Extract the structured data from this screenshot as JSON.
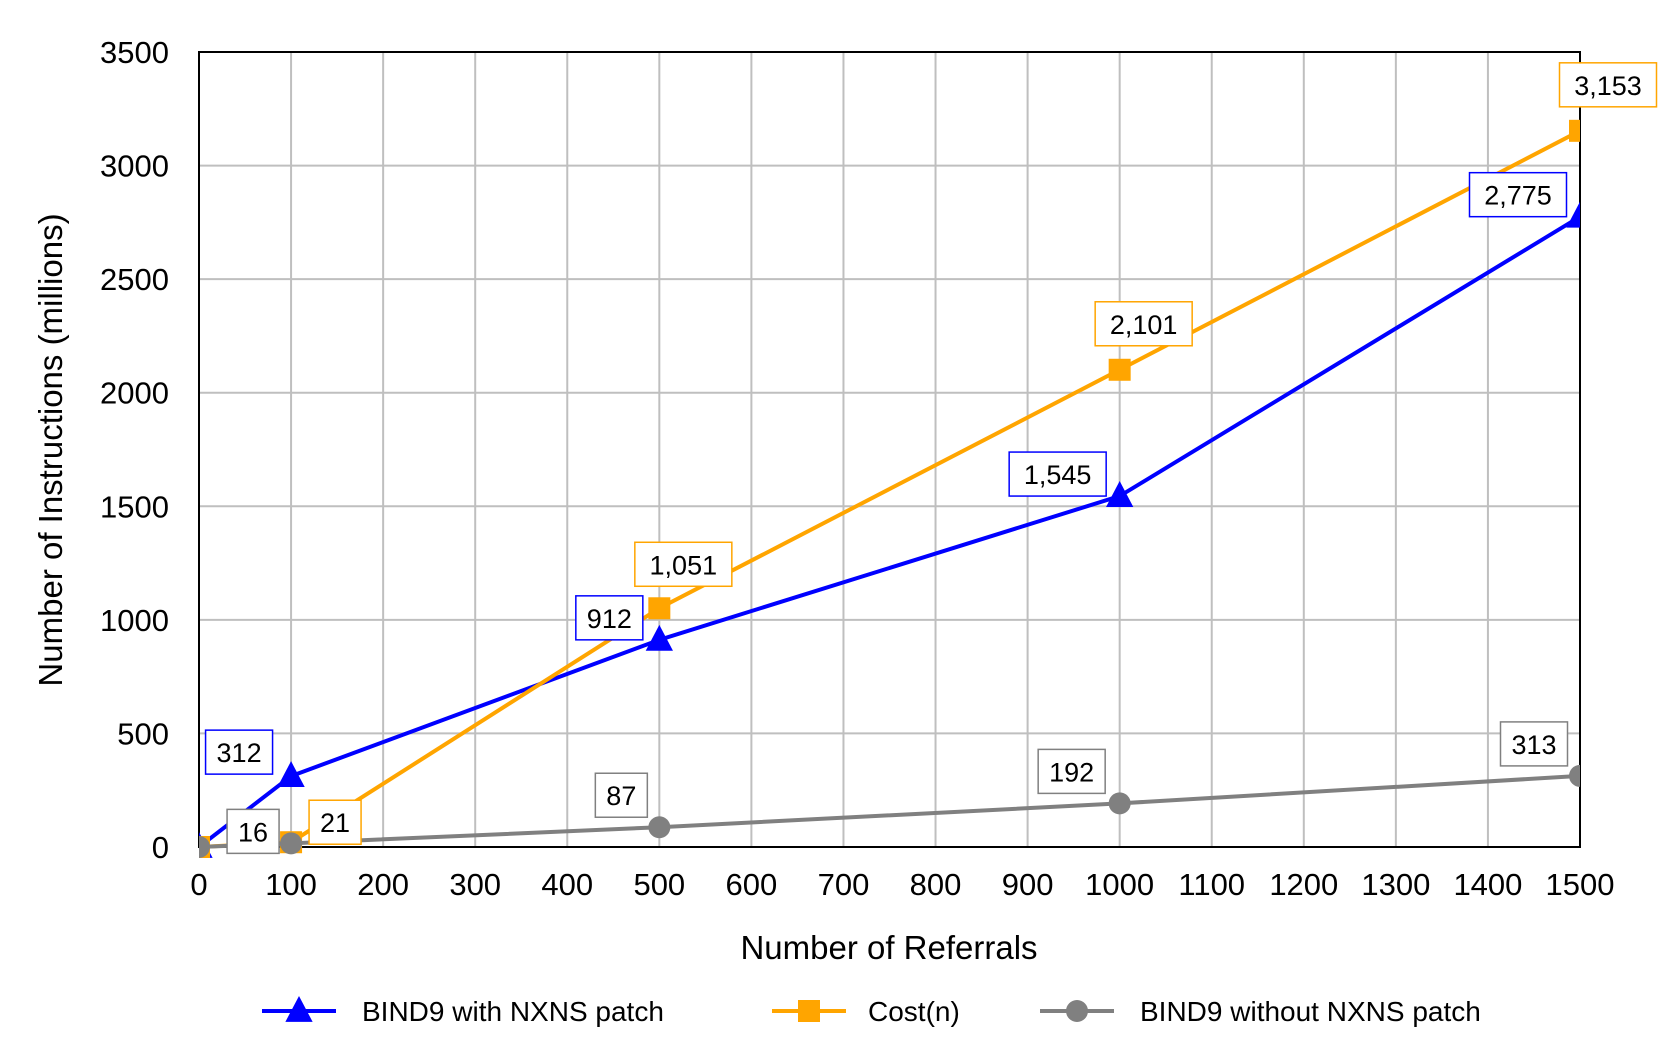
{
  "chart_data": {
    "type": "line",
    "xlabel": "Number of Referrals",
    "ylabel": "Number of Instructions (millions)",
    "xlim": [
      0,
      1500
    ],
    "ylim": [
      0,
      3500
    ],
    "x_ticks": [
      "0",
      "100",
      "200",
      "300",
      "400",
      "500",
      "600",
      "700",
      "800",
      "900",
      "1000",
      "1100",
      "1200",
      "1300",
      "1400",
      "1500"
    ],
    "y_ticks": [
      "0",
      "500",
      "1000",
      "1500",
      "2000",
      "2500",
      "3000",
      "3500"
    ],
    "grid": true,
    "legend_position": "bottom",
    "series": [
      {
        "name": "BIND9 with NXNS patch",
        "color": "#0000ff",
        "marker": "triangle",
        "x": [
          0,
          100,
          500,
          1000,
          1500
        ],
        "y": [
          0,
          312,
          912,
          1545,
          2775
        ],
        "labels": [
          "",
          "312",
          "912",
          "1,545",
          "2,775"
        ]
      },
      {
        "name": "Cost(n)",
        "color": "#ffa500",
        "marker": "square",
        "x": [
          0,
          100,
          500,
          1000,
          1500
        ],
        "y": [
          0,
          21,
          1051,
          2101,
          3153
        ],
        "labels": [
          "",
          "21",
          "1,051",
          "2,101",
          "3,153"
        ]
      },
      {
        "name": "BIND9 without NXNS patch",
        "color": "#808080",
        "marker": "circle",
        "x": [
          0,
          100,
          500,
          1000,
          1500
        ],
        "y": [
          0,
          16,
          87,
          192,
          313
        ],
        "labels": [
          "",
          "16",
          "87",
          "192",
          "313"
        ]
      }
    ]
  }
}
